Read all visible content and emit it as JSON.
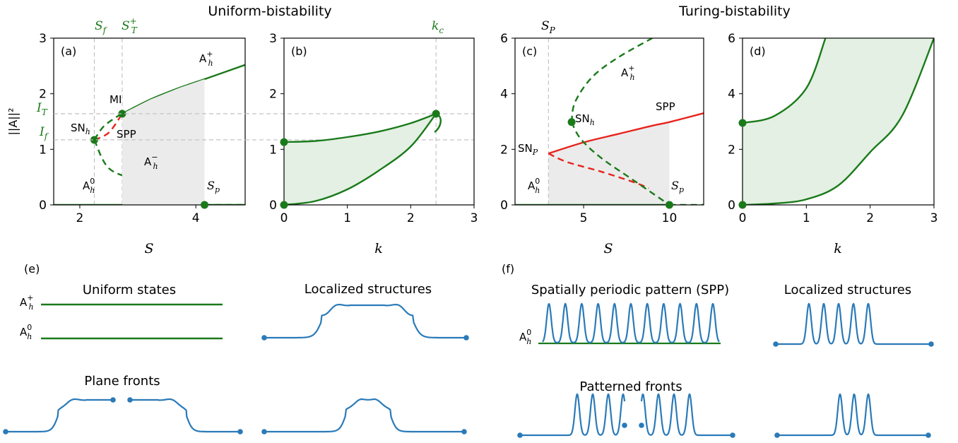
{
  "titles": {
    "uniform": "Uniform-bistability",
    "turing": "Turing-bistability"
  },
  "colors": {
    "green": "#1a7a1a",
    "red": "#e8231c",
    "blue": "#2a7ab8",
    "gray_fill": "#ebebeb",
    "green_fill": "#e3f0e3",
    "ref_line": "#bfbfbf"
  },
  "chart_data": [
    {
      "panel": "(a)",
      "type": "line",
      "xlabel": "S",
      "ylabel": "||A||²",
      "xlim": [
        1.55,
        4.85
      ],
      "ylim": [
        0,
        3
      ],
      "xticks": [
        "2",
        "4"
      ],
      "yticks": [
        "0",
        "1",
        "2",
        "3"
      ],
      "top_labels": [
        "S_f",
        "S_T^+"
      ],
      "left_labels": [
        "I_T",
        "I_f"
      ],
      "vlines": [
        2.25,
        2.73
      ],
      "hlines": [
        1.64,
        1.17
      ],
      "annotations": [
        "A_h^+",
        "MI",
        "SN_h",
        "SPP",
        "A_h^-",
        "A_h^0",
        "S_p"
      ],
      "shaded_x": [
        2.73,
        4.15
      ],
      "series": [
        {
          "stability": "stable",
          "x": [
            1.55,
            4.85
          ],
          "y": [
            0,
            0
          ]
        },
        {
          "stability": "unstable",
          "x": [
            4.15,
            4.85
          ],
          "y": [
            0,
            0
          ]
        },
        {
          "stability": "stable",
          "x": [
            2.73,
            3.2,
            3.7,
            4.2,
            4.85
          ],
          "y": [
            1.64,
            1.89,
            2.1,
            2.28,
            2.52
          ]
        },
        {
          "stability": "unstable",
          "x": [
            2.25,
            2.4,
            2.6,
            2.73
          ],
          "y": [
            1.17,
            1.4,
            1.56,
            1.64
          ]
        },
        {
          "stability": "unstable",
          "x": [
            2.25,
            2.5,
            3.0,
            3.5,
            4.15
          ],
          "y": [
            1.17,
            0.66,
            0.44,
            0.24,
            0.0
          ]
        },
        {
          "stability": "unstable_spp",
          "x": [
            2.25,
            2.5,
            2.73
          ],
          "y": [
            1.17,
            1.3,
            1.64
          ]
        }
      ],
      "points": [
        {
          "x": 2.25,
          "y": 1.17
        },
        {
          "x": 2.73,
          "y": 1.64
        },
        {
          "x": 4.15,
          "y": 0
        }
      ]
    },
    {
      "panel": "(b)",
      "type": "area",
      "xlabel": "k",
      "xlim": [
        0,
        3
      ],
      "ylim": [
        0,
        3
      ],
      "xticks": [
        "0",
        "1",
        "2",
        "3"
      ],
      "yticks": [
        "0",
        "1",
        "2",
        "3"
      ],
      "top_labels": [
        "k_c"
      ],
      "vlines": [
        2.4
      ],
      "series": [
        {
          "name": "upper",
          "x": [
            0,
            0.5,
            1.0,
            1.5,
            2.0,
            2.4
          ],
          "y": [
            1.13,
            1.15,
            1.22,
            1.32,
            1.47,
            1.64
          ]
        },
        {
          "name": "lower",
          "x": [
            0,
            0.5,
            1.0,
            1.5,
            2.0,
            2.4
          ],
          "y": [
            0,
            0.07,
            0.28,
            0.62,
            1.05,
            1.64
          ]
        }
      ],
      "points": [
        {
          "x": 0,
          "y": 1.13
        },
        {
          "x": 0,
          "y": 0
        },
        {
          "x": 2.4,
          "y": 1.64
        }
      ]
    },
    {
      "panel": "(c)",
      "type": "line",
      "xlabel": "S",
      "xlim": [
        1.0,
        12.0
      ],
      "ylim": [
        0,
        6
      ],
      "xticks": [
        "5",
        "10"
      ],
      "yticks": [
        "0",
        "2",
        "4",
        "6"
      ],
      "top_labels": [
        "S_P"
      ],
      "vlines": [
        2.95
      ],
      "annotations": [
        "A_h^+",
        "SN_h",
        "SPP",
        "SN_P",
        "A_h^0",
        "S_p"
      ],
      "shaded_x": [
        2.95,
        10
      ],
      "series": [
        {
          "stability": "stable",
          "x": [
            1.0,
            10
          ],
          "y": [
            0,
            0
          ]
        },
        {
          "stability": "unstable",
          "x": [
            10,
            12
          ],
          "y": [
            0,
            0
          ]
        },
        {
          "stability": "stable_spp",
          "x": [
            2.95,
            5,
            7,
            9,
            10,
            12
          ],
          "y": [
            1.85,
            2.25,
            2.55,
            2.85,
            2.98,
            3.3
          ]
        },
        {
          "stability": "unstable_spp",
          "x": [
            2.95,
            4,
            6,
            8,
            8.8
          ],
          "y": [
            1.85,
            1.55,
            1.2,
            0.8,
            0.6
          ]
        },
        {
          "stability": "unstable",
          "x": [
            4.3,
            4.8,
            6.0,
            8.0,
            10
          ],
          "y": [
            2.98,
            2.4,
            1.7,
            0.85,
            0
          ]
        },
        {
          "stability": "unstable",
          "x": [
            4.3,
            4.5,
            5.5,
            7.0,
            9.0
          ],
          "y": [
            2.98,
            3.7,
            4.6,
            5.3,
            6.0
          ]
        }
      ],
      "points": [
        {
          "x": 4.3,
          "y": 2.98
        },
        {
          "x": 10,
          "y": 0
        }
      ]
    },
    {
      "panel": "(d)",
      "type": "area",
      "xlabel": "k",
      "xlim": [
        0,
        3
      ],
      "ylim": [
        0,
        6
      ],
      "xticks": [
        "0",
        "1",
        "2",
        "3"
      ],
      "yticks": [
        "0",
        "2",
        "4",
        "6"
      ],
      "series": [
        {
          "name": "upper",
          "x": [
            0,
            0.5,
            1.0,
            1.3
          ],
          "y": [
            2.95,
            3.2,
            4.2,
            6.0
          ]
        },
        {
          "name": "lower",
          "x": [
            0,
            0.5,
            1.0,
            1.5,
            2.0,
            2.5,
            3.0
          ],
          "y": [
            0,
            0.05,
            0.2,
            0.7,
            1.9,
            3.2,
            6.0
          ]
        }
      ],
      "points": [
        {
          "x": 0,
          "y": 2.95
        },
        {
          "x": 0,
          "y": 0
        }
      ]
    }
  ],
  "panel_e": {
    "tag": "(e)",
    "uniform_title": "Uniform states",
    "localized_title": "Localized structures",
    "fronts_title": "Plane fronts",
    "state_labels": [
      "A_h^+",
      "A_h^0"
    ]
  },
  "panel_f": {
    "tag": "(f)",
    "spp_title": "Spatially periodic pattern (SPP)",
    "localized_title": "Localized structures",
    "fronts_title": "Patterned fronts",
    "state_label": "A_h^0"
  }
}
